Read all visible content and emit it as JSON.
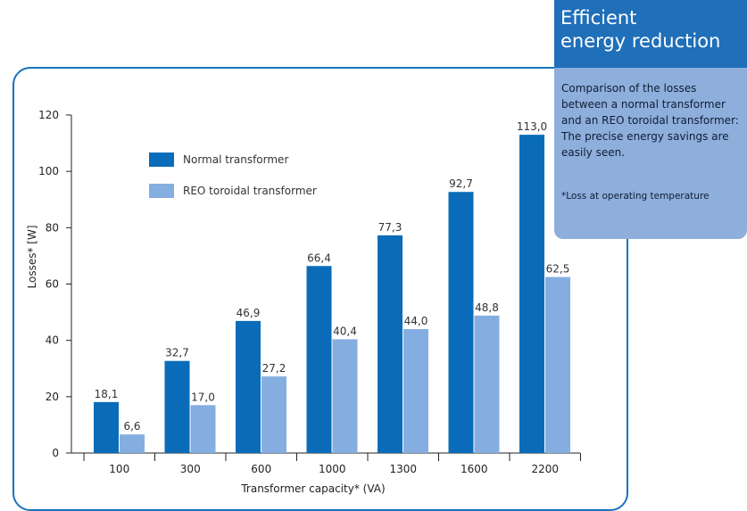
{
  "info": {
    "title_line1": "Efficient",
    "title_line2": "energy reduction",
    "description": "Comparison of the losses between a normal transformer and an REO toroidal transformer: The precise energy savings are easily seen.",
    "note": "*Loss at operating temperature",
    "header_color": "#1f6fb9",
    "box_color": "#8eaedc"
  },
  "chart_data": {
    "type": "bar",
    "categories": [
      "100",
      "300",
      "600",
      "1000",
      "1300",
      "1600",
      "2200"
    ],
    "series": [
      {
        "name": "Normal transformer",
        "color": "#0a6cb8",
        "values": [
          18.1,
          32.7,
          46.9,
          66.4,
          77.3,
          92.7,
          113.0
        ],
        "labels": [
          "18,1",
          "32,7",
          "46,9",
          "66,4",
          "77,3",
          "92,7",
          "113,0"
        ]
      },
      {
        "name": "REO toroidal transformer",
        "color": "#85aee0",
        "values": [
          6.6,
          17.0,
          27.2,
          40.4,
          44.0,
          48.8,
          62.5
        ],
        "labels": [
          "6,6",
          "17,0",
          "27,2",
          "40,4",
          "44,0",
          "48,8",
          "62,5"
        ]
      }
    ],
    "xlabel": "Transformer capacity* (VA)",
    "ylabel": "Losses* [W]",
    "ylim": [
      0,
      120
    ],
    "yticks": [
      0,
      20,
      40,
      60,
      80,
      100,
      120
    ],
    "grid": false,
    "legend_position": "top-left"
  }
}
